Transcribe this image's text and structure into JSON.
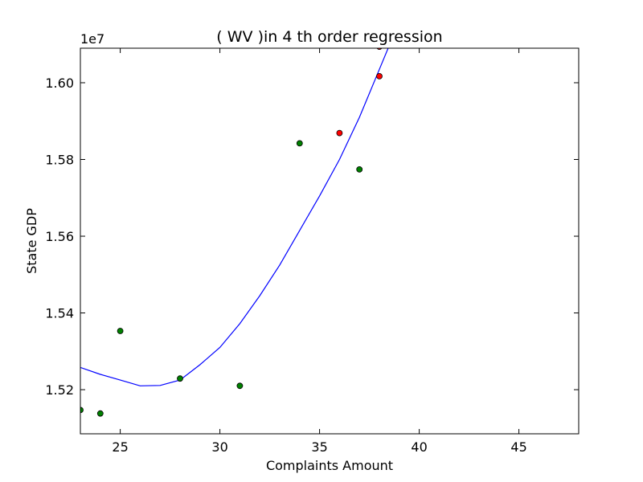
{
  "chart_data": {
    "type": "scatter",
    "title": "(  WV  )in 4 th order regression",
    "xlabel": "Complaints Amount",
    "ylabel": "State GDP",
    "y_offset_label": "1e7",
    "xlim": [
      23,
      48
    ],
    "ylim": [
      15085000,
      16090000
    ],
    "x_ticks": [
      25,
      30,
      35,
      40,
      45
    ],
    "x_tick_labels": [
      "25",
      "30",
      "35",
      "40",
      "45"
    ],
    "y_ticks": [
      15200000,
      15400000,
      15600000,
      15800000,
      16000000
    ],
    "y_tick_labels": [
      "1.52",
      "1.54",
      "1.56",
      "1.58",
      "1.60"
    ],
    "grid": false,
    "series": [
      {
        "kind": "points",
        "color": "#008000",
        "points": [
          [
            23,
            15147000
          ],
          [
            24,
            15138000
          ],
          [
            25,
            15353000
          ],
          [
            28,
            15229000
          ],
          [
            31,
            15210000
          ],
          [
            34,
            15842000
          ],
          [
            37,
            15774000
          ]
        ]
      },
      {
        "kind": "points",
        "color": "#ff0000",
        "points": [
          [
            36,
            15869000
          ],
          [
            38,
            16017000
          ],
          [
            38,
            16094000
          ]
        ]
      },
      {
        "kind": "line",
        "color": "#0000ff",
        "points": [
          [
            23,
            15258000
          ],
          [
            24,
            15240000
          ],
          [
            25,
            15225000
          ],
          [
            26,
            15210000
          ],
          [
            27,
            15211000
          ],
          [
            28,
            15225000
          ],
          [
            29,
            15265000
          ],
          [
            30,
            15310000
          ],
          [
            31,
            15372000
          ],
          [
            32,
            15445000
          ],
          [
            33,
            15525000
          ],
          [
            34,
            15615000
          ],
          [
            35,
            15705000
          ],
          [
            36,
            15800000
          ],
          [
            37,
            15910000
          ],
          [
            38,
            16035000
          ],
          [
            38.6,
            16110000
          ]
        ]
      }
    ]
  }
}
